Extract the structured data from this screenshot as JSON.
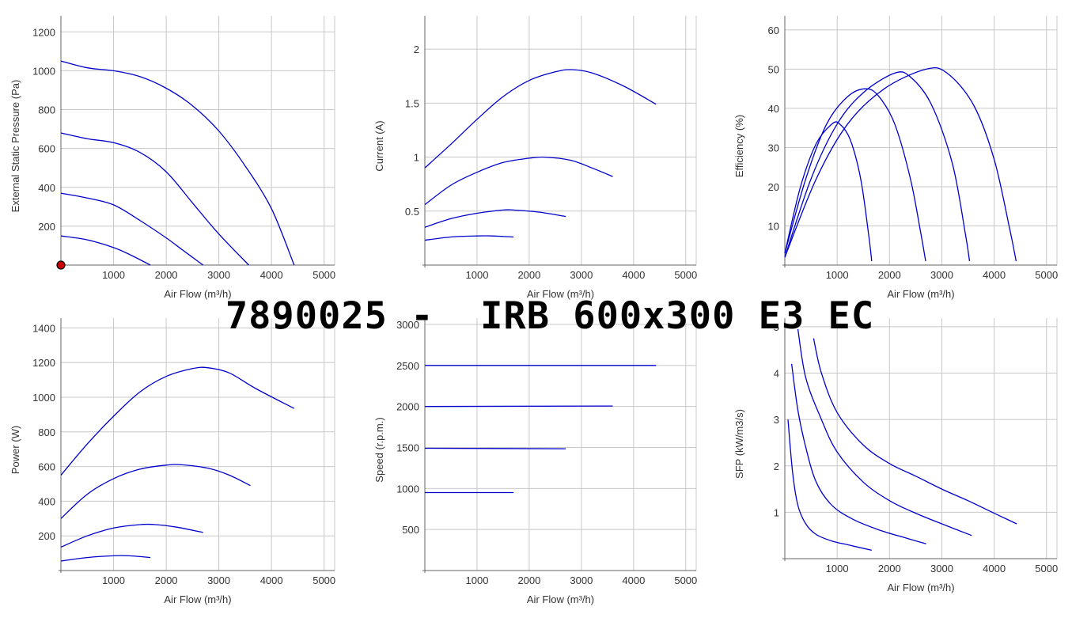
{
  "banner": "7890025 -  IRB 600x300 E3 EC",
  "colors": {
    "line": "#0000cc",
    "grid": "#c8c8c8",
    "axis": "#666666",
    "marker": "#cc0000"
  },
  "chart_data": [
    {
      "type": "line",
      "xlabel": "Air Flow (m³/h)",
      "ylabel": "External Static Pressure (Pa)",
      "xlim": [
        0,
        5200
      ],
      "ylim": [
        0,
        1250
      ],
      "xticks": [
        1000,
        2000,
        3000,
        4000,
        5000
      ],
      "yticks": [
        200,
        400,
        600,
        800,
        1000,
        1200
      ],
      "marker": {
        "x": 0,
        "y": 0
      },
      "series": [
        {
          "values": [
            [
              0,
              1050
            ],
            [
              500,
              1015
            ],
            [
              1000,
              1000
            ],
            [
              1500,
              970
            ],
            [
              2000,
              910
            ],
            [
              2500,
              820
            ],
            [
              3000,
              690
            ],
            [
              3500,
              510
            ],
            [
              4000,
              290
            ],
            [
              4430,
              0
            ]
          ]
        },
        {
          "values": [
            [
              0,
              680
            ],
            [
              500,
              650
            ],
            [
              1000,
              630
            ],
            [
              1500,
              580
            ],
            [
              2000,
              480
            ],
            [
              2500,
              320
            ],
            [
              3000,
              160
            ],
            [
              3570,
              0
            ]
          ]
        },
        {
          "values": [
            [
              0,
              370
            ],
            [
              500,
              345
            ],
            [
              1000,
              310
            ],
            [
              1500,
              230
            ],
            [
              2000,
              140
            ],
            [
              2300,
              80
            ],
            [
              2700,
              0
            ]
          ]
        },
        {
          "values": [
            [
              0,
              150
            ],
            [
              500,
              130
            ],
            [
              1000,
              90
            ],
            [
              1300,
              55
            ],
            [
              1700,
              0
            ]
          ]
        }
      ]
    },
    {
      "type": "line",
      "xlabel": "Air Flow (m³/h)",
      "ylabel": "Current (A)",
      "xlim": [
        0,
        5200
      ],
      "ylim": [
        0,
        2.25
      ],
      "xticks": [
        1000,
        2000,
        3000,
        4000,
        5000
      ],
      "yticks": [
        0.5,
        1,
        1.5,
        2
      ],
      "series": [
        {
          "values": [
            [
              0,
              0.9
            ],
            [
              500,
              1.12
            ],
            [
              1000,
              1.35
            ],
            [
              1500,
              1.56
            ],
            [
              2000,
              1.71
            ],
            [
              2500,
              1.79
            ],
            [
              2800,
              1.81
            ],
            [
              3200,
              1.78
            ],
            [
              3800,
              1.66
            ],
            [
              4430,
              1.49
            ]
          ]
        },
        {
          "values": [
            [
              0,
              0.56
            ],
            [
              500,
              0.74
            ],
            [
              1000,
              0.86
            ],
            [
              1500,
              0.95
            ],
            [
              2000,
              0.99
            ],
            [
              2300,
              1.0
            ],
            [
              2800,
              0.97
            ],
            [
              3200,
              0.9
            ],
            [
              3600,
              0.82
            ]
          ]
        },
        {
          "values": [
            [
              0,
              0.35
            ],
            [
              500,
              0.43
            ],
            [
              1000,
              0.48
            ],
            [
              1500,
              0.51
            ],
            [
              1700,
              0.51
            ],
            [
              2200,
              0.49
            ],
            [
              2700,
              0.45
            ]
          ]
        },
        {
          "values": [
            [
              0,
              0.23
            ],
            [
              500,
              0.26
            ],
            [
              1000,
              0.27
            ],
            [
              1300,
              0.27
            ],
            [
              1700,
              0.26
            ]
          ]
        }
      ]
    },
    {
      "type": "line",
      "xlabel": "Air Flow (m³/h)",
      "ylabel": "Efficiency (%)",
      "xlim": [
        0,
        5200
      ],
      "ylim": [
        0,
        62
      ],
      "xticks": [
        1000,
        2000,
        3000,
        4000,
        5000
      ],
      "yticks": [
        10,
        20,
        30,
        40,
        50,
        60
      ],
      "series": [
        {
          "values": [
            [
              0,
              3
            ],
            [
              300,
              20
            ],
            [
              600,
              31
            ],
            [
              900,
              36
            ],
            [
              1050,
              36
            ],
            [
              1250,
              32
            ],
            [
              1450,
              22
            ],
            [
              1600,
              8
            ],
            [
              1660,
              1
            ]
          ]
        },
        {
          "values": [
            [
              0,
              3
            ],
            [
              400,
              22
            ],
            [
              800,
              36
            ],
            [
              1200,
              43
            ],
            [
              1550,
              45
            ],
            [
              1800,
              43
            ],
            [
              2100,
              36
            ],
            [
              2400,
              22
            ],
            [
              2600,
              8
            ],
            [
              2690,
              1
            ]
          ]
        },
        {
          "values": [
            [
              0,
              2
            ],
            [
              500,
              22
            ],
            [
              1000,
              36
            ],
            [
              1500,
              44
            ],
            [
              2100,
              49
            ],
            [
              2400,
              48
            ],
            [
              2800,
              41
            ],
            [
              3200,
              26
            ],
            [
              3450,
              8
            ],
            [
              3530,
              1
            ]
          ]
        },
        {
          "values": [
            [
              0,
              2
            ],
            [
              600,
              22
            ],
            [
              1200,
              36
            ],
            [
              1900,
              45
            ],
            [
              2700,
              50
            ],
            [
              3100,
              49
            ],
            [
              3600,
              41
            ],
            [
              4000,
              27
            ],
            [
              4300,
              9
            ],
            [
              4420,
              1
            ]
          ]
        }
      ]
    },
    {
      "type": "line",
      "xlabel": "Air Flow (m³/h)",
      "ylabel": "Power (W)",
      "xlim": [
        0,
        5200
      ],
      "ylim": [
        0,
        1420
      ],
      "xticks": [
        1000,
        2000,
        3000,
        4000,
        5000
      ],
      "yticks": [
        200,
        400,
        600,
        800,
        1000,
        1200,
        1400
      ],
      "series": [
        {
          "values": [
            [
              0,
              550
            ],
            [
              500,
              730
            ],
            [
              1000,
              890
            ],
            [
              1500,
              1030
            ],
            [
              2000,
              1120
            ],
            [
              2500,
              1165
            ],
            [
              2800,
              1170
            ],
            [
              3200,
              1140
            ],
            [
              3700,
              1050
            ],
            [
              4430,
              935
            ]
          ]
        },
        {
          "values": [
            [
              0,
              300
            ],
            [
              500,
              440
            ],
            [
              1000,
              530
            ],
            [
              1500,
              585
            ],
            [
              2000,
              608
            ],
            [
              2300,
              610
            ],
            [
              2800,
              590
            ],
            [
              3200,
              550
            ],
            [
              3600,
              490
            ]
          ]
        },
        {
          "values": [
            [
              0,
              135
            ],
            [
              500,
              200
            ],
            [
              1000,
              245
            ],
            [
              1500,
              265
            ],
            [
              1800,
              265
            ],
            [
              2200,
              250
            ],
            [
              2700,
              220
            ]
          ]
        },
        {
          "values": [
            [
              0,
              55
            ],
            [
              500,
              75
            ],
            [
              1000,
              85
            ],
            [
              1300,
              85
            ],
            [
              1700,
              75
            ]
          ]
        }
      ]
    },
    {
      "type": "line",
      "xlabel": "Air Flow (m³/h)",
      "ylabel": "Speed (r.p.m.)",
      "xlim": [
        0,
        5200
      ],
      "ylim": [
        0,
        3000
      ],
      "xticks": [
        1000,
        2000,
        3000,
        4000,
        5000
      ],
      "yticks": [
        500,
        1000,
        1500,
        2000,
        2500,
        3000
      ],
      "series": [
        {
          "values": [
            [
              0,
              2500
            ],
            [
              4430,
              2500
            ]
          ]
        },
        {
          "values": [
            [
              0,
              2000
            ],
            [
              3600,
              2005
            ]
          ]
        },
        {
          "values": [
            [
              0,
              1490
            ],
            [
              2700,
              1485
            ]
          ]
        },
        {
          "values": [
            [
              0,
              950
            ],
            [
              1700,
              950
            ]
          ]
        }
      ]
    },
    {
      "type": "line",
      "xlabel": "Air Flow (m³/h)",
      "ylabel": "SFP (kW/m3/s)",
      "xlim": [
        0,
        5200
      ],
      "ylim": [
        0,
        5.05
      ],
      "xticks": [
        1000,
        2000,
        3000,
        4000,
        5000
      ],
      "yticks": [
        1,
        2,
        3,
        4,
        5
      ],
      "series": [
        {
          "values": [
            [
              550,
              4.75
            ],
            [
              700,
              4.0
            ],
            [
              1000,
              3.15
            ],
            [
              1500,
              2.45
            ],
            [
              2000,
              2.05
            ],
            [
              2500,
              1.78
            ],
            [
              3000,
              1.5
            ],
            [
              3500,
              1.25
            ],
            [
              4000,
              0.98
            ],
            [
              4430,
              0.75
            ]
          ]
        },
        {
          "values": [
            [
              250,
              4.95
            ],
            [
              400,
              3.9
            ],
            [
              700,
              3.0
            ],
            [
              1000,
              2.3
            ],
            [
              1500,
              1.65
            ],
            [
              2000,
              1.25
            ],
            [
              2500,
              0.98
            ],
            [
              3000,
              0.75
            ],
            [
              3570,
              0.5
            ]
          ]
        },
        {
          "values": [
            [
              130,
              4.2
            ],
            [
              250,
              3.2
            ],
            [
              400,
              2.4
            ],
            [
              600,
              1.65
            ],
            [
              900,
              1.15
            ],
            [
              1300,
              0.85
            ],
            [
              1800,
              0.62
            ],
            [
              2300,
              0.45
            ],
            [
              2700,
              0.32
            ]
          ]
        },
        {
          "values": [
            [
              60,
              3.0
            ],
            [
              150,
              1.85
            ],
            [
              250,
              1.15
            ],
            [
              400,
              0.75
            ],
            [
              600,
              0.52
            ],
            [
              900,
              0.38
            ],
            [
              1200,
              0.3
            ],
            [
              1660,
              0.18
            ]
          ]
        }
      ]
    }
  ]
}
